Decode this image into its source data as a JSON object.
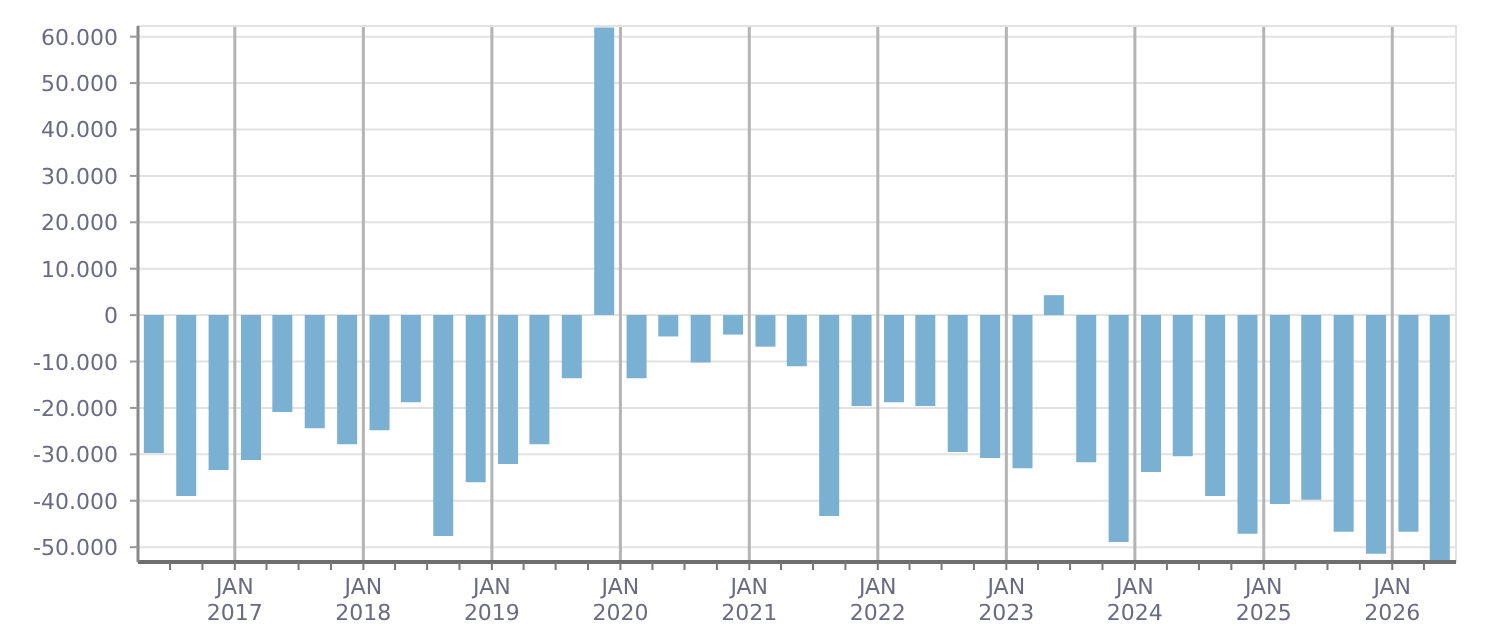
{
  "chart_data": {
    "type": "bar",
    "x": [
      "2016-05-15",
      "2016-08-15",
      "2016-11-15",
      "2017-02-15",
      "2017-05-15",
      "2017-08-15",
      "2017-11-15",
      "2018-02-15",
      "2018-05-15",
      "2018-08-15",
      "2018-11-15",
      "2019-02-15",
      "2019-05-15",
      "2019-08-15",
      "2019-11-15",
      "2020-02-15",
      "2020-05-15",
      "2020-08-15",
      "2020-11-15",
      "2021-02-15",
      "2021-05-15",
      "2021-08-15",
      "2021-11-15",
      "2022-02-15",
      "2022-05-15",
      "2022-08-15",
      "2022-11-15",
      "2023-02-15",
      "2023-05-15",
      "2023-08-15",
      "2023-11-15",
      "2024-02-15",
      "2024-05-15",
      "2024-08-15",
      "2024-11-15",
      "2025-02-15",
      "2025-05-15",
      "2025-08-15",
      "2025-11-15",
      "2026-02-15",
      "2026-05-15"
    ],
    "values": [
      -29700,
      -39000,
      -33400,
      -31200,
      -20900,
      -24400,
      -27800,
      -24800,
      -18800,
      -47600,
      -36000,
      -32100,
      -27800,
      -13600,
      62000,
      -13600,
      -4600,
      -10200,
      -4200,
      -6800,
      -11000,
      -43300,
      -19600,
      -18800,
      -19600,
      -29500,
      -30800,
      -33000,
      4300,
      -31700,
      -48900,
      -33800,
      -30400,
      -39000,
      -47100,
      -40700,
      -39800,
      -46700,
      -51400,
      -46700,
      -53000
    ],
    "color": "#7ab0d2",
    "ylim": [
      -53200,
      62300
    ],
    "yticks": [
      {
        "value": 60000,
        "label": "60.000"
      },
      {
        "value": 50000,
        "label": "50.000"
      },
      {
        "value": 40000,
        "label": "40.000"
      },
      {
        "value": 30000,
        "label": "30.000"
      },
      {
        "value": 20000,
        "label": "20.000"
      },
      {
        "value": 10000,
        "label": "10.000"
      },
      0,
      {
        "value": -10000,
        "label": "-10.000"
      },
      {
        "value": -20000,
        "label": "-20.000"
      },
      {
        "value": -30000,
        "label": "-30.000"
      },
      {
        "value": -40000,
        "label": "-40.000"
      },
      {
        "value": -50000,
        "label": "-50.000"
      }
    ],
    "xlim": [
      "2016-04-01",
      "2026-07-01"
    ],
    "xticks": [
      {
        "value": "2016-07-01",
        "label": null
      },
      {
        "value": "2016-10-01",
        "label": null
      },
      {
        "value": "2017-01-01",
        "label": "JAN\n2017"
      },
      {
        "value": "2017-04-01",
        "label": null
      },
      {
        "value": "2017-07-01",
        "label": null
      },
      {
        "value": "2017-10-01",
        "label": null
      },
      {
        "value": "2018-01-01",
        "label": "JAN\n2018"
      },
      {
        "value": "2018-04-01",
        "label": null
      },
      {
        "value": "2018-07-01",
        "label": null
      },
      {
        "value": "2018-10-01",
        "label": null
      },
      {
        "value": "2019-01-01",
        "label": "JAN\n2019"
      },
      {
        "value": "2019-04-01",
        "label": null
      },
      {
        "value": "2019-07-01",
        "label": null
      },
      {
        "value": "2019-10-01",
        "label": null
      },
      {
        "value": "2020-01-01",
        "label": "JAN\n2020"
      },
      {
        "value": "2020-04-01",
        "label": null
      },
      {
        "value": "2020-07-01",
        "label": null
      },
      {
        "value": "2020-10-01",
        "label": null
      },
      {
        "value": "2021-01-01",
        "label": "JAN\n2021"
      },
      {
        "value": "2021-04-01",
        "label": null
      },
      {
        "value": "2021-07-01",
        "label": null
      },
      {
        "value": "2021-10-01",
        "label": null
      },
      {
        "value": "2022-01-01",
        "label": "JAN\n2022"
      },
      {
        "value": "2022-04-01",
        "label": null
      },
      {
        "value": "2022-07-01",
        "label": null
      },
      {
        "value": "2022-10-01",
        "label": null
      },
      {
        "value": "2023-01-01",
        "label": "JAN\n2023"
      },
      {
        "value": "2023-04-01",
        "label": null
      },
      {
        "value": "2023-07-01",
        "label": null
      },
      {
        "value": "2023-10-01",
        "label": null
      },
      {
        "value": "2024-01-01",
        "label": "JAN\n2024"
      },
      {
        "value": "2024-04-01",
        "label": null
      },
      {
        "value": "2024-07-01",
        "label": null
      },
      {
        "value": "2024-10-01",
        "label": null
      },
      {
        "value": "2025-01-01",
        "label": "JAN\n2025"
      },
      {
        "value": "2025-04-01",
        "label": null
      },
      {
        "value": "2025-07-01",
        "label": null
      },
      {
        "value": "2025-10-01",
        "label": null
      },
      {
        "value": "2026-01-01",
        "label": "JAN\n2026"
      },
      {
        "value": "2026-04-01",
        "label": null
      }
    ],
    "grid": true
  }
}
